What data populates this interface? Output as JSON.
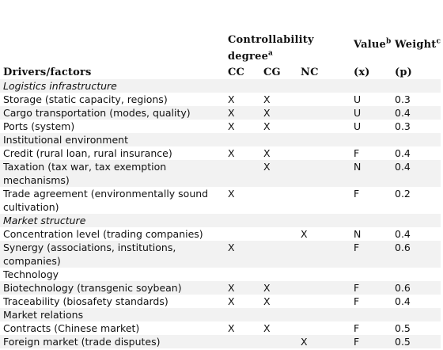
{
  "headers": {
    "controllability_line1": "Controllability",
    "controllability_line2": "degree",
    "controllability_sup": "a",
    "value": "Value",
    "value_sup": "b",
    "weight": "Weight",
    "weight_sup": "c",
    "drivers": "Drivers/factors",
    "cc": "CC",
    "cg": "CG",
    "nc": "NC",
    "x": "(x)",
    "p": "(p)"
  },
  "rows": [
    {
      "driver": "Logistics infrastructure",
      "italic": true,
      "cc": "",
      "cg": "",
      "nc": "",
      "value": "",
      "weight": ""
    },
    {
      "driver": "Storage (static capacity, regions)",
      "italic": false,
      "cc": "X",
      "cg": "X",
      "nc": "",
      "value": "U",
      "weight": "0.3"
    },
    {
      "driver": "Cargo transportation (modes, quality)",
      "italic": false,
      "cc": "X",
      "cg": "X",
      "nc": "",
      "value": "U",
      "weight": "0.4"
    },
    {
      "driver": "Ports (system)",
      "italic": false,
      "cc": "X",
      "cg": "X",
      "nc": "",
      "value": "U",
      "weight": "0.3"
    },
    {
      "driver": "Institutional environment",
      "italic": false,
      "cc": "",
      "cg": "",
      "nc": "",
      "value": "",
      "weight": ""
    },
    {
      "driver": "Credit (rural loan, rural insurance)",
      "italic": false,
      "cc": "X",
      "cg": "X",
      "nc": "",
      "value": "F",
      "weight": "0.4"
    },
    {
      "driver": "Taxation (tax war, tax exemption mechanisms)",
      "italic": false,
      "cc": "",
      "cg": "X",
      "nc": "",
      "value": "N",
      "weight": "0.4"
    },
    {
      "driver": "Trade agreement (environmentally sound cultivation)",
      "italic": false,
      "cc": "X",
      "cg": "",
      "nc": "",
      "value": "F",
      "weight": "0.2"
    },
    {
      "driver": "Market structure",
      "italic": true,
      "cc": "",
      "cg": "",
      "nc": "",
      "value": "",
      "weight": ""
    },
    {
      "driver": "Concentration level (trading companies)",
      "italic": false,
      "cc": "",
      "cg": "",
      "nc": "X",
      "value": "N",
      "weight": "0.4"
    },
    {
      "driver": "Synergy (associations, institutions, companies)",
      "italic": false,
      "cc": "X",
      "cg": "",
      "nc": "",
      "value": "F",
      "weight": "0.6"
    },
    {
      "driver": "Technology",
      "italic": false,
      "cc": "",
      "cg": "",
      "nc": "",
      "value": "",
      "weight": ""
    },
    {
      "driver": "Biotechnology (transgenic soybean)",
      "italic": false,
      "cc": "X",
      "cg": "X",
      "nc": "",
      "value": "F",
      "weight": "0.6"
    },
    {
      "driver": "Traceability (biosafety standards)",
      "italic": false,
      "cc": "X",
      "cg": "X",
      "nc": "",
      "value": "F",
      "weight": "0.4"
    },
    {
      "driver": "Market relations",
      "italic": false,
      "cc": "",
      "cg": "",
      "nc": "",
      "value": "",
      "weight": ""
    },
    {
      "driver": "Contracts (Chinese market)",
      "italic": false,
      "cc": "X",
      "cg": "X",
      "nc": "",
      "value": "F",
      "weight": "0.5"
    },
    {
      "driver": "Foreign market (trade disputes)",
      "italic": false,
      "cc": "",
      "cg": "",
      "nc": "X",
      "value": "F",
      "weight": "0.5"
    }
  ]
}
